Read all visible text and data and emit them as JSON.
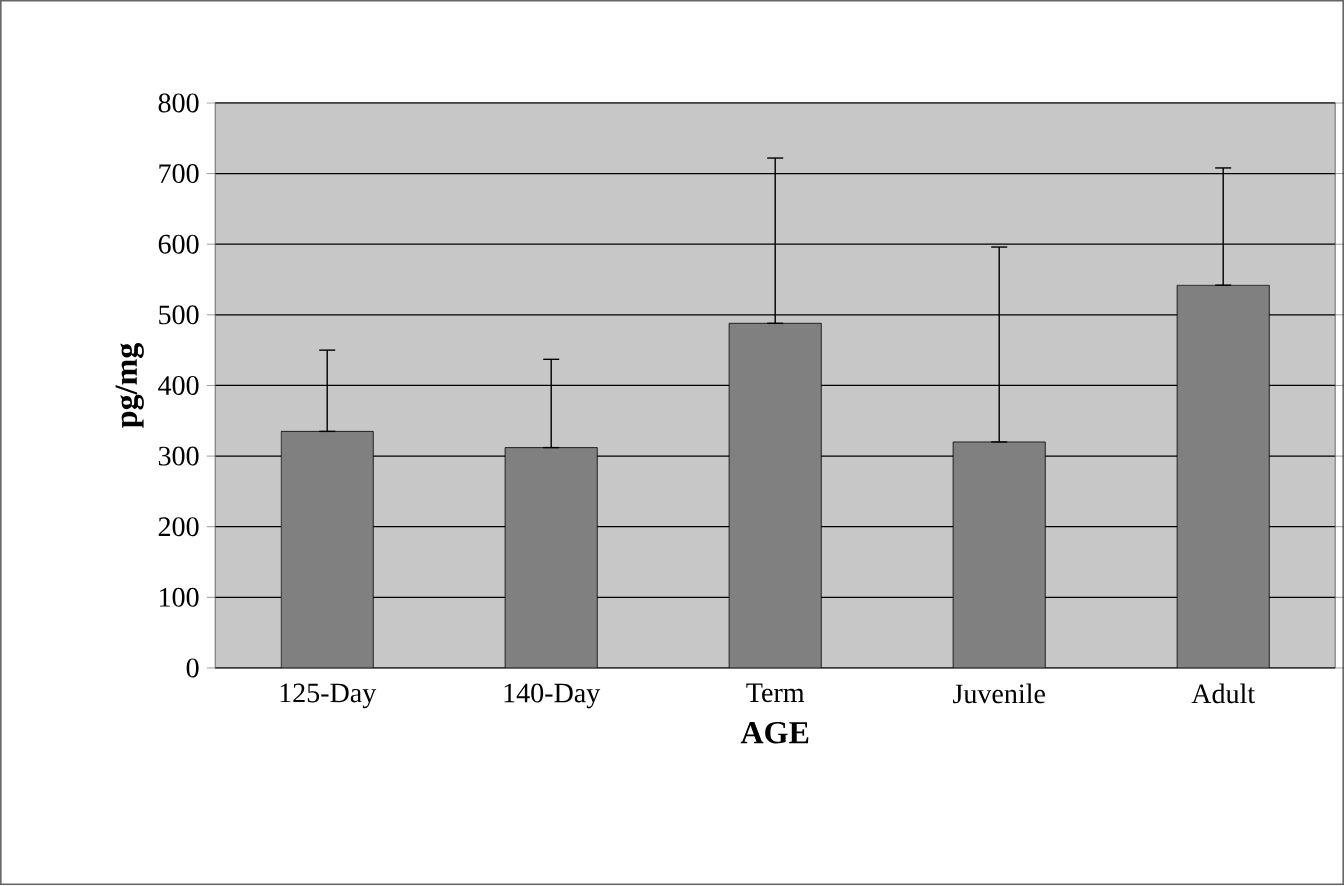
{
  "chart_data": {
    "type": "bar",
    "xlabel": "AGE",
    "ylabel": "pg/mg",
    "categories": [
      "125-Day",
      "140-Day",
      "Term",
      "Juvenile",
      "Adult"
    ],
    "values": [
      335,
      312,
      488,
      320,
      542
    ],
    "errors": [
      [
        335,
        450
      ],
      [
        312,
        437
      ],
      [
        488,
        722
      ],
      [
        320,
        596
      ],
      [
        542,
        708
      ]
    ],
    "color": "#808080",
    "ylim": [
      0,
      800
    ],
    "yticks": [
      0,
      100,
      200,
      300,
      400,
      500,
      600,
      700,
      800
    ],
    "grid": "y"
  }
}
